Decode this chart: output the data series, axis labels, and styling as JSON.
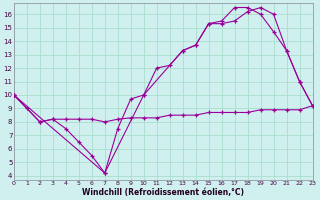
{
  "bg_color": "#cff0ee",
  "line_color": "#990099",
  "grid_color": "#aaddcc",
  "xlabel": "Windchill (Refroidissement éolien,°C)",
  "ylabel_ticks": [
    4,
    5,
    6,
    7,
    8,
    9,
    10,
    11,
    12,
    13,
    14,
    15,
    16
  ],
  "xlabel_ticks": [
    0,
    1,
    2,
    3,
    4,
    5,
    6,
    7,
    8,
    9,
    10,
    11,
    12,
    13,
    14,
    15,
    16,
    17,
    18,
    19,
    20,
    21,
    22,
    23
  ],
  "xlim": [
    0,
    23
  ],
  "ylim": [
    3.7,
    16.8
  ],
  "series": [
    {
      "x": [
        0,
        1,
        2,
        3,
        4,
        5,
        6,
        7,
        8,
        9,
        10,
        11,
        12,
        13,
        14,
        15,
        16,
        17,
        18,
        19,
        20,
        21,
        22,
        23
      ],
      "y": [
        10.0,
        9.0,
        8.0,
        8.2,
        8.2,
        8.2,
        8.2,
        8.0,
        8.2,
        8.3,
        8.3,
        8.3,
        8.5,
        8.5,
        8.5,
        8.7,
        8.7,
        8.7,
        8.7,
        8.9,
        8.9,
        8.9,
        8.9,
        9.2
      ]
    },
    {
      "x": [
        0,
        2,
        3,
        4,
        5,
        6,
        7,
        8,
        9,
        10,
        11,
        12,
        13,
        14,
        15,
        16,
        17,
        18,
        19,
        20,
        21,
        22,
        23
      ],
      "y": [
        10.0,
        8.0,
        8.2,
        7.5,
        6.5,
        5.5,
        4.2,
        7.5,
        9.7,
        10.0,
        12.0,
        12.2,
        13.3,
        13.7,
        15.3,
        15.3,
        15.5,
        16.2,
        16.5,
        16.0,
        13.3,
        11.0,
        9.2
      ]
    },
    {
      "x": [
        0,
        7,
        10,
        13,
        14,
        15,
        16,
        17,
        18,
        19,
        20,
        21,
        22,
        23
      ],
      "y": [
        10.0,
        4.2,
        10.0,
        13.3,
        13.7,
        15.3,
        15.5,
        16.5,
        16.5,
        16.0,
        14.7,
        13.3,
        11.0,
        9.2
      ]
    }
  ]
}
